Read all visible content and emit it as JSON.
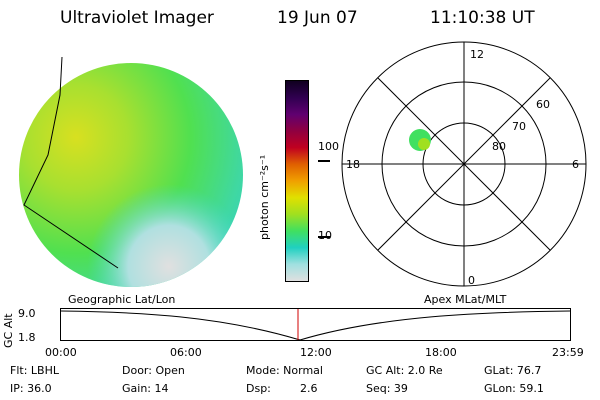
{
  "header": {
    "title": "Ultraviolet Imager",
    "date": "19 Jun 07",
    "time": "11:10:38 UT"
  },
  "colorbar": {
    "unit_label": "photon cm⁻²s⁻¹",
    "ticks": [
      "100",
      "10"
    ],
    "colors_top_to_bottom": [
      "#100020",
      "#300050",
      "#600070",
      "#900040",
      "#c00020",
      "#e06000",
      "#f0a000",
      "#e0e000",
      "#a0e020",
      "#40e060",
      "#20d0c0",
      "#a0e0e0",
      "#e0e0e0"
    ]
  },
  "polar_plot": {
    "mlt_labels": {
      "top": "12",
      "left": "18",
      "right": "6",
      "bottom": "0"
    },
    "lat_labels": [
      "60",
      "70",
      "80"
    ]
  },
  "altitude_strip": {
    "axis_title": "GC Alt",
    "y_ticks": [
      "9.0",
      "1.8"
    ],
    "left_caption": "Geographic Lat/Lon",
    "right_caption": "Apex MLat/MLT",
    "x_ticks": [
      "00:00",
      "06:00",
      "12:00",
      "18:00",
      "23:59"
    ]
  },
  "status": {
    "row1": {
      "filter": "Flt: LBHL",
      "door": "Door: Open",
      "mode": "Mode: Normal",
      "gc_alt": "GC Alt: 2.0 Re",
      "glat": "GLat:  76.7"
    },
    "row2": {
      "ip": "IP: 36.0",
      "gain": "Gain: 14",
      "dsp_label": "Dsp:",
      "dsp_value": "2.6",
      "seq": "Seq: 39",
      "glon": "GLon:  59.1"
    }
  }
}
